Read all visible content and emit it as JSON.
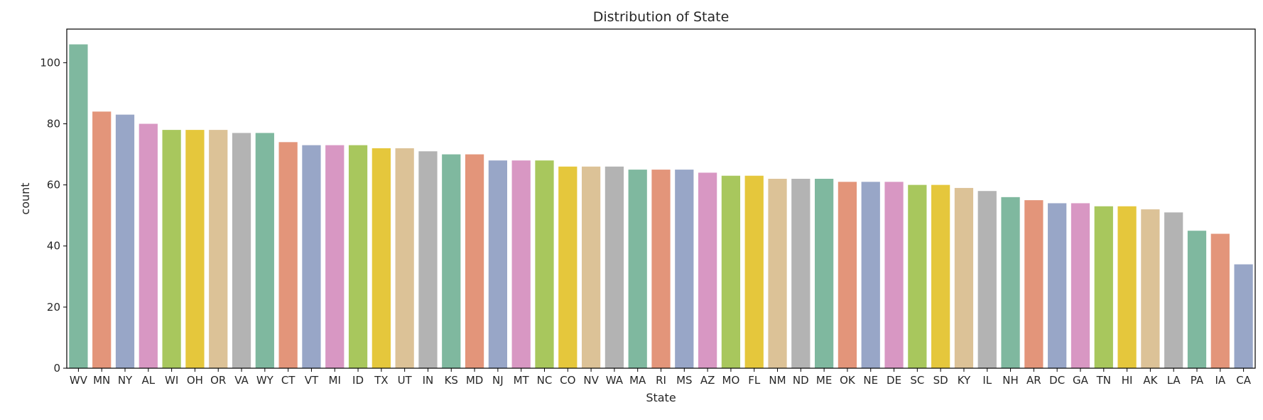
{
  "chart_data": {
    "type": "bar",
    "title": "Distribution of State",
    "xlabel": "State",
    "ylabel": "count",
    "ylim": [
      0,
      111
    ],
    "yticks": [
      0,
      20,
      40,
      60,
      80,
      100
    ],
    "grid": false,
    "categories": [
      "WV",
      "MN",
      "NY",
      "AL",
      "WI",
      "OH",
      "OR",
      "VA",
      "WY",
      "CT",
      "VT",
      "MI",
      "ID",
      "TX",
      "UT",
      "IN",
      "KS",
      "MD",
      "NJ",
      "MT",
      "NC",
      "CO",
      "NV",
      "WA",
      "MA",
      "RI",
      "MS",
      "AZ",
      "MO",
      "FL",
      "NM",
      "ND",
      "ME",
      "OK",
      "NE",
      "DE",
      "SC",
      "SD",
      "KY",
      "IL",
      "NH",
      "AR",
      "DC",
      "GA",
      "TN",
      "HI",
      "AK",
      "LA",
      "PA",
      "IA",
      "CA"
    ],
    "values": [
      106,
      84,
      83,
      80,
      78,
      78,
      78,
      77,
      77,
      74,
      73,
      73,
      73,
      72,
      72,
      71,
      70,
      70,
      68,
      68,
      68,
      66,
      66,
      66,
      65,
      65,
      65,
      64,
      63,
      63,
      62,
      62,
      62,
      61,
      61,
      61,
      60,
      60,
      59,
      58,
      56,
      55,
      54,
      54,
      53,
      53,
      52,
      51,
      45,
      44,
      34
    ],
    "palette": [
      "#7fb89f",
      "#e3957a",
      "#98a6c7",
      "#d897c3",
      "#a8c75d",
      "#e5c73c",
      "#dcc297",
      "#b3b3b3"
    ]
  }
}
